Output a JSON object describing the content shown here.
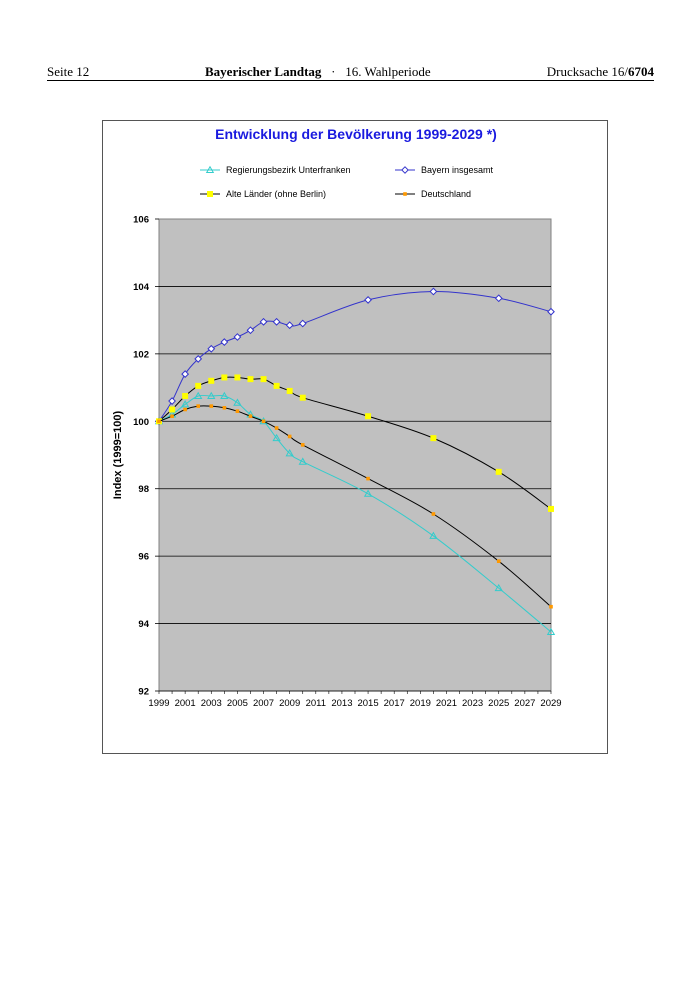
{
  "header": {
    "left": "Seite 12",
    "center_bold": "Bayerischer Landtag",
    "center_sep": "·",
    "center_rest": "16. Wahlperiode",
    "right_prefix": "Drucksache 16/",
    "right_bold": "6704"
  },
  "colors": {
    "plot_bg": "#c0c0c0",
    "title": "#1a1adf",
    "unterfranken": "#33cccc",
    "bayern": "#3333cc",
    "alte_laender_marker": "#ffff00",
    "alte_laender_line": "#000000",
    "deutschland_marker": "#ff9900",
    "deutschland_line": "#000000"
  },
  "chart_data": {
    "type": "line",
    "title": "Entwicklung der Bevölkerung 1999-2029 *)",
    "xlabel": "",
    "ylabel": "Index (1999=100)",
    "xlim": [
      1999,
      2029
    ],
    "ylim": [
      92,
      106
    ],
    "x_ticks": [
      "1999",
      "2001",
      "2003",
      "2005",
      "2007",
      "2009",
      "2011",
      "2013",
      "2015",
      "2017",
      "2019",
      "2021",
      "2023",
      "2025",
      "2027",
      "2029"
    ],
    "y_ticks": [
      "92",
      "94",
      "96",
      "98",
      "100",
      "102",
      "104",
      "106"
    ],
    "grid": "horizontal",
    "legend_position": "top",
    "series": [
      {
        "name": "Regierungsbezirk Unterfranken",
        "key": "unterfranken",
        "marker": "triangle",
        "x": [
          1999,
          2000,
          2001,
          2002,
          2003,
          2004,
          2005,
          2006,
          2007,
          2008,
          2009,
          2010,
          2015,
          2020,
          2025,
          2029
        ],
        "values": [
          100.0,
          100.2,
          100.5,
          100.75,
          100.75,
          100.75,
          100.55,
          100.2,
          100.0,
          99.5,
          99.05,
          98.8,
          97.85,
          96.6,
          95.05,
          93.75
        ]
      },
      {
        "name": "Bayern insgesamt",
        "key": "bayern",
        "marker": "diamond",
        "x": [
          1999,
          2000,
          2001,
          2002,
          2003,
          2004,
          2005,
          2006,
          2007,
          2008,
          2009,
          2010,
          2015,
          2020,
          2025,
          2029
        ],
        "values": [
          100.0,
          100.6,
          101.4,
          101.85,
          102.15,
          102.35,
          102.5,
          102.7,
          102.95,
          102.95,
          102.85,
          102.9,
          103.6,
          103.85,
          103.65,
          103.25
        ]
      },
      {
        "name": "Alte Länder (ohne Berlin)",
        "key": "alte_laender",
        "marker": "square",
        "x": [
          1999,
          2000,
          2001,
          2002,
          2003,
          2004,
          2005,
          2006,
          2007,
          2008,
          2009,
          2010,
          2015,
          2020,
          2025,
          2029
        ],
        "values": [
          100.0,
          100.35,
          100.75,
          101.05,
          101.2,
          101.3,
          101.3,
          101.25,
          101.25,
          101.05,
          100.9,
          100.7,
          100.15,
          99.5,
          98.5,
          97.4
        ]
      },
      {
        "name": "Deutschland",
        "key": "deutschland",
        "marker": "smallsquare",
        "x": [
          1999,
          2000,
          2001,
          2002,
          2003,
          2004,
          2005,
          2006,
          2007,
          2008,
          2009,
          2010,
          2015,
          2020,
          2025,
          2029
        ],
        "values": [
          100.0,
          100.15,
          100.35,
          100.45,
          100.45,
          100.4,
          100.3,
          100.15,
          100.0,
          99.8,
          99.55,
          99.3,
          98.3,
          97.25,
          95.85,
          94.5
        ]
      }
    ]
  }
}
